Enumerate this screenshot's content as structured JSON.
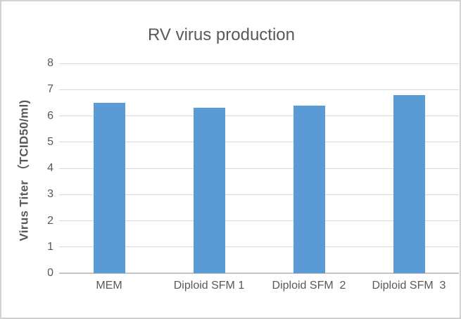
{
  "chart_data": {
    "type": "bar",
    "title": "RV virus production",
    "ylabel": "Virus Titer （TCID50/ml)",
    "xlabel": "",
    "categories": [
      "MEM",
      "Diploid SFM 1",
      "Diploid SFM  2",
      "Diploid SFM  3"
    ],
    "values": [
      6.5,
      6.3,
      6.4,
      6.8
    ],
    "ylim": [
      0,
      8
    ],
    "yticks": [
      0,
      1,
      2,
      3,
      4,
      5,
      6,
      7,
      8
    ],
    "grid": true,
    "legend_position": "none",
    "colors": {
      "bar": "#5b9bd5",
      "text": "#595959",
      "gridline": "#d9d9d9",
      "axis_line": "#c4c4c4",
      "frame_border": "#d2d2d2",
      "background": "#ffffff"
    }
  }
}
